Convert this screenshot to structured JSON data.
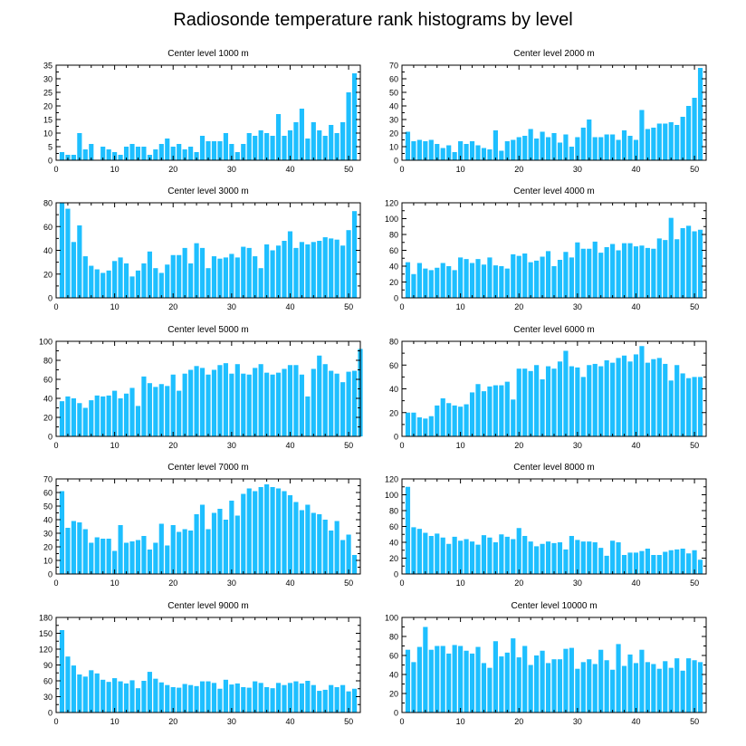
{
  "title": "Radiosonde temperature rank histograms by level",
  "colors": {
    "bar": "#1ebfff",
    "axis": "#000000",
    "background": "#ffffff"
  },
  "chart_data": [
    {
      "type": "bar",
      "title": "Center level 1000 m",
      "ylim": [
        0,
        35
      ],
      "xlim": [
        0,
        52
      ],
      "xticks": [
        0,
        10,
        20,
        30,
        40,
        50
      ],
      "yticks": [
        0,
        5,
        10,
        15,
        20,
        25,
        30,
        35
      ],
      "values": [
        3,
        2,
        2,
        10,
        4,
        6,
        0,
        5,
        4,
        3,
        2,
        5,
        6,
        5,
        5,
        2,
        4,
        6,
        8,
        5,
        6,
        4,
        5,
        3,
        9,
        7,
        7,
        7,
        10,
        6,
        3,
        6,
        10,
        9,
        11,
        10,
        9,
        17,
        9,
        11,
        14,
        19,
        8,
        14,
        11,
        9,
        13,
        10,
        14,
        25,
        32
      ]
    },
    {
      "type": "bar",
      "title": "Center level 2000 m",
      "ylim": [
        0,
        70
      ],
      "xlim": [
        0,
        52
      ],
      "xticks": [
        0,
        10,
        20,
        30,
        40,
        50
      ],
      "yticks": [
        0,
        10,
        20,
        30,
        40,
        50,
        60,
        70
      ],
      "values": [
        21,
        14,
        15,
        14,
        15,
        12,
        9,
        11,
        6,
        14,
        12,
        14,
        11,
        9,
        8,
        22,
        7,
        14,
        15,
        17,
        18,
        23,
        16,
        21,
        17,
        20,
        13,
        19,
        10,
        17,
        24,
        30,
        17,
        17,
        19,
        19,
        15,
        22,
        18,
        15,
        37,
        23,
        24,
        27,
        27,
        28,
        26,
        32,
        40,
        46,
        68
      ]
    },
    {
      "type": "bar",
      "title": "Center level 3000 m",
      "ylim": [
        0,
        80
      ],
      "xlim": [
        0,
        52
      ],
      "xticks": [
        0,
        10,
        20,
        30,
        40,
        50
      ],
      "yticks": [
        0,
        20,
        40,
        60,
        80
      ],
      "values": [
        80,
        75,
        47,
        61,
        35,
        27,
        24,
        21,
        23,
        31,
        34,
        29,
        18,
        23,
        29,
        39,
        25,
        21,
        28,
        36,
        36,
        42,
        29,
        46,
        42,
        25,
        35,
        33,
        34,
        37,
        34,
        43,
        42,
        35,
        25,
        45,
        40,
        44,
        48,
        56,
        42,
        47,
        45,
        47,
        48,
        51,
        50,
        49,
        44,
        57,
        73
      ]
    },
    {
      "type": "bar",
      "title": "Center level 4000 m",
      "ylim": [
        0,
        120
      ],
      "xlim": [
        0,
        52
      ],
      "xticks": [
        0,
        10,
        20,
        30,
        40,
        50
      ],
      "yticks": [
        0,
        20,
        40,
        60,
        80,
        100,
        120
      ],
      "values": [
        45,
        30,
        44,
        37,
        35,
        38,
        44,
        40,
        35,
        51,
        49,
        44,
        49,
        42,
        51,
        41,
        40,
        37,
        55,
        53,
        56,
        45,
        47,
        52,
        59,
        40,
        48,
        58,
        51,
        70,
        62,
        62,
        71,
        57,
        64,
        68,
        60,
        69,
        69,
        65,
        66,
        63,
        62,
        75,
        73,
        101,
        74,
        88,
        91,
        84,
        86
      ]
    },
    {
      "type": "bar",
      "title": "Center level 5000 m",
      "ylim": [
        0,
        100
      ],
      "xlim": [
        0,
        52
      ],
      "xticks": [
        0,
        10,
        20,
        30,
        40,
        50
      ],
      "yticks": [
        0,
        20,
        40,
        60,
        80,
        100
      ],
      "values": [
        37,
        42,
        40,
        35,
        30,
        38,
        43,
        42,
        43,
        48,
        40,
        45,
        51,
        32,
        63,
        56,
        52,
        55,
        53,
        65,
        48,
        66,
        70,
        74,
        72,
        65,
        70,
        75,
        77,
        66,
        76,
        66,
        65,
        72,
        76,
        67,
        65,
        67,
        71,
        75,
        75,
        65,
        42,
        71,
        85,
        76,
        69,
        66,
        57,
        68,
        69,
        92
      ]
    },
    {
      "type": "bar",
      "title": "Center level 6000 m",
      "ylim": [
        0,
        80
      ],
      "xlim": [
        0,
        52
      ],
      "xticks": [
        0,
        10,
        20,
        30,
        40,
        50
      ],
      "yticks": [
        0,
        20,
        40,
        60,
        80
      ],
      "values": [
        20,
        20,
        16,
        15,
        17,
        26,
        32,
        28,
        26,
        25,
        27,
        37,
        44,
        38,
        42,
        43,
        43,
        46,
        31,
        57,
        57,
        55,
        60,
        48,
        59,
        57,
        63,
        72,
        59,
        58,
        50,
        60,
        61,
        59,
        64,
        62,
        66,
        68,
        63,
        69,
        76,
        62,
        65,
        66,
        61,
        47,
        60,
        53,
        49,
        50,
        50
      ]
    },
    {
      "type": "bar",
      "title": "Center level 7000 m",
      "ylim": [
        0,
        70
      ],
      "xlim": [
        0,
        52
      ],
      "xticks": [
        0,
        10,
        20,
        30,
        40,
        50
      ],
      "yticks": [
        0,
        10,
        20,
        30,
        40,
        50,
        60,
        70
      ],
      "values": [
        61,
        34,
        39,
        38,
        33,
        23,
        27,
        26,
        26,
        17,
        36,
        23,
        24,
        25,
        28,
        18,
        23,
        37,
        21,
        36,
        31,
        33,
        32,
        44,
        51,
        33,
        45,
        48,
        40,
        54,
        43,
        59,
        63,
        61,
        64,
        66,
        64,
        63,
        61,
        58,
        53,
        47,
        51,
        45,
        44,
        40,
        32,
        39,
        25,
        29,
        14
      ]
    },
    {
      "type": "bar",
      "title": "Center level 8000 m",
      "ylim": [
        0,
        120
      ],
      "xlim": [
        0,
        52
      ],
      "xticks": [
        0,
        10,
        20,
        30,
        40,
        50
      ],
      "yticks": [
        0,
        20,
        40,
        60,
        80,
        100,
        120
      ],
      "values": [
        110,
        59,
        57,
        52,
        48,
        51,
        46,
        38,
        47,
        42,
        44,
        41,
        37,
        49,
        46,
        40,
        50,
        47,
        44,
        58,
        48,
        41,
        35,
        38,
        41,
        39,
        40,
        31,
        48,
        43,
        41,
        41,
        40,
        33,
        23,
        42,
        40,
        24,
        27,
        27,
        29,
        32,
        24,
        24,
        28,
        30,
        31,
        32,
        26,
        30,
        18
      ]
    },
    {
      "type": "bar",
      "title": "Center level 9000 m",
      "ylim": [
        0,
        180
      ],
      "xlim": [
        0,
        52
      ],
      "xticks": [
        0,
        10,
        20,
        30,
        40,
        50
      ],
      "yticks": [
        0,
        30,
        60,
        90,
        120,
        150,
        180
      ],
      "values": [
        156,
        106,
        89,
        72,
        68,
        80,
        74,
        62,
        58,
        65,
        59,
        55,
        61,
        46,
        60,
        77,
        64,
        57,
        52,
        48,
        47,
        54,
        52,
        50,
        59,
        59,
        56,
        45,
        62,
        53,
        55,
        48,
        47,
        59,
        56,
        48,
        46,
        56,
        52,
        56,
        59,
        55,
        60,
        52,
        41,
        43,
        52,
        48,
        52,
        40,
        45
      ]
    },
    {
      "type": "bar",
      "title": "Center level 10000 m",
      "ylim": [
        0,
        100
      ],
      "xlim": [
        0,
        52
      ],
      "xticks": [
        0,
        10,
        20,
        30,
        40,
        50
      ],
      "yticks": [
        0,
        20,
        40,
        60,
        80,
        100
      ],
      "values": [
        66,
        53,
        69,
        90,
        66,
        70,
        70,
        62,
        71,
        70,
        65,
        62,
        69,
        52,
        47,
        75,
        59,
        63,
        78,
        58,
        70,
        50,
        60,
        65,
        52,
        56,
        56,
        67,
        68,
        46,
        53,
        56,
        51,
        66,
        55,
        45,
        72,
        49,
        61,
        52,
        66,
        53,
        51,
        46,
        54,
        47,
        57,
        44,
        57,
        55,
        53
      ]
    }
  ]
}
